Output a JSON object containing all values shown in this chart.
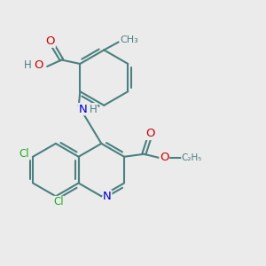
{
  "bg_color": "#ebebeb",
  "bond_color": "#4a8080",
  "bond_width": 1.5,
  "atom_colors": {
    "C": "#4a8080",
    "H": "#4a8080",
    "O": "#cc0000",
    "N": "#0000cc",
    "Cl": "#22aa22"
  },
  "font_size": 8.5,
  "fig_width": 3.0,
  "fig_height": 3.0,
  "dpi": 100
}
